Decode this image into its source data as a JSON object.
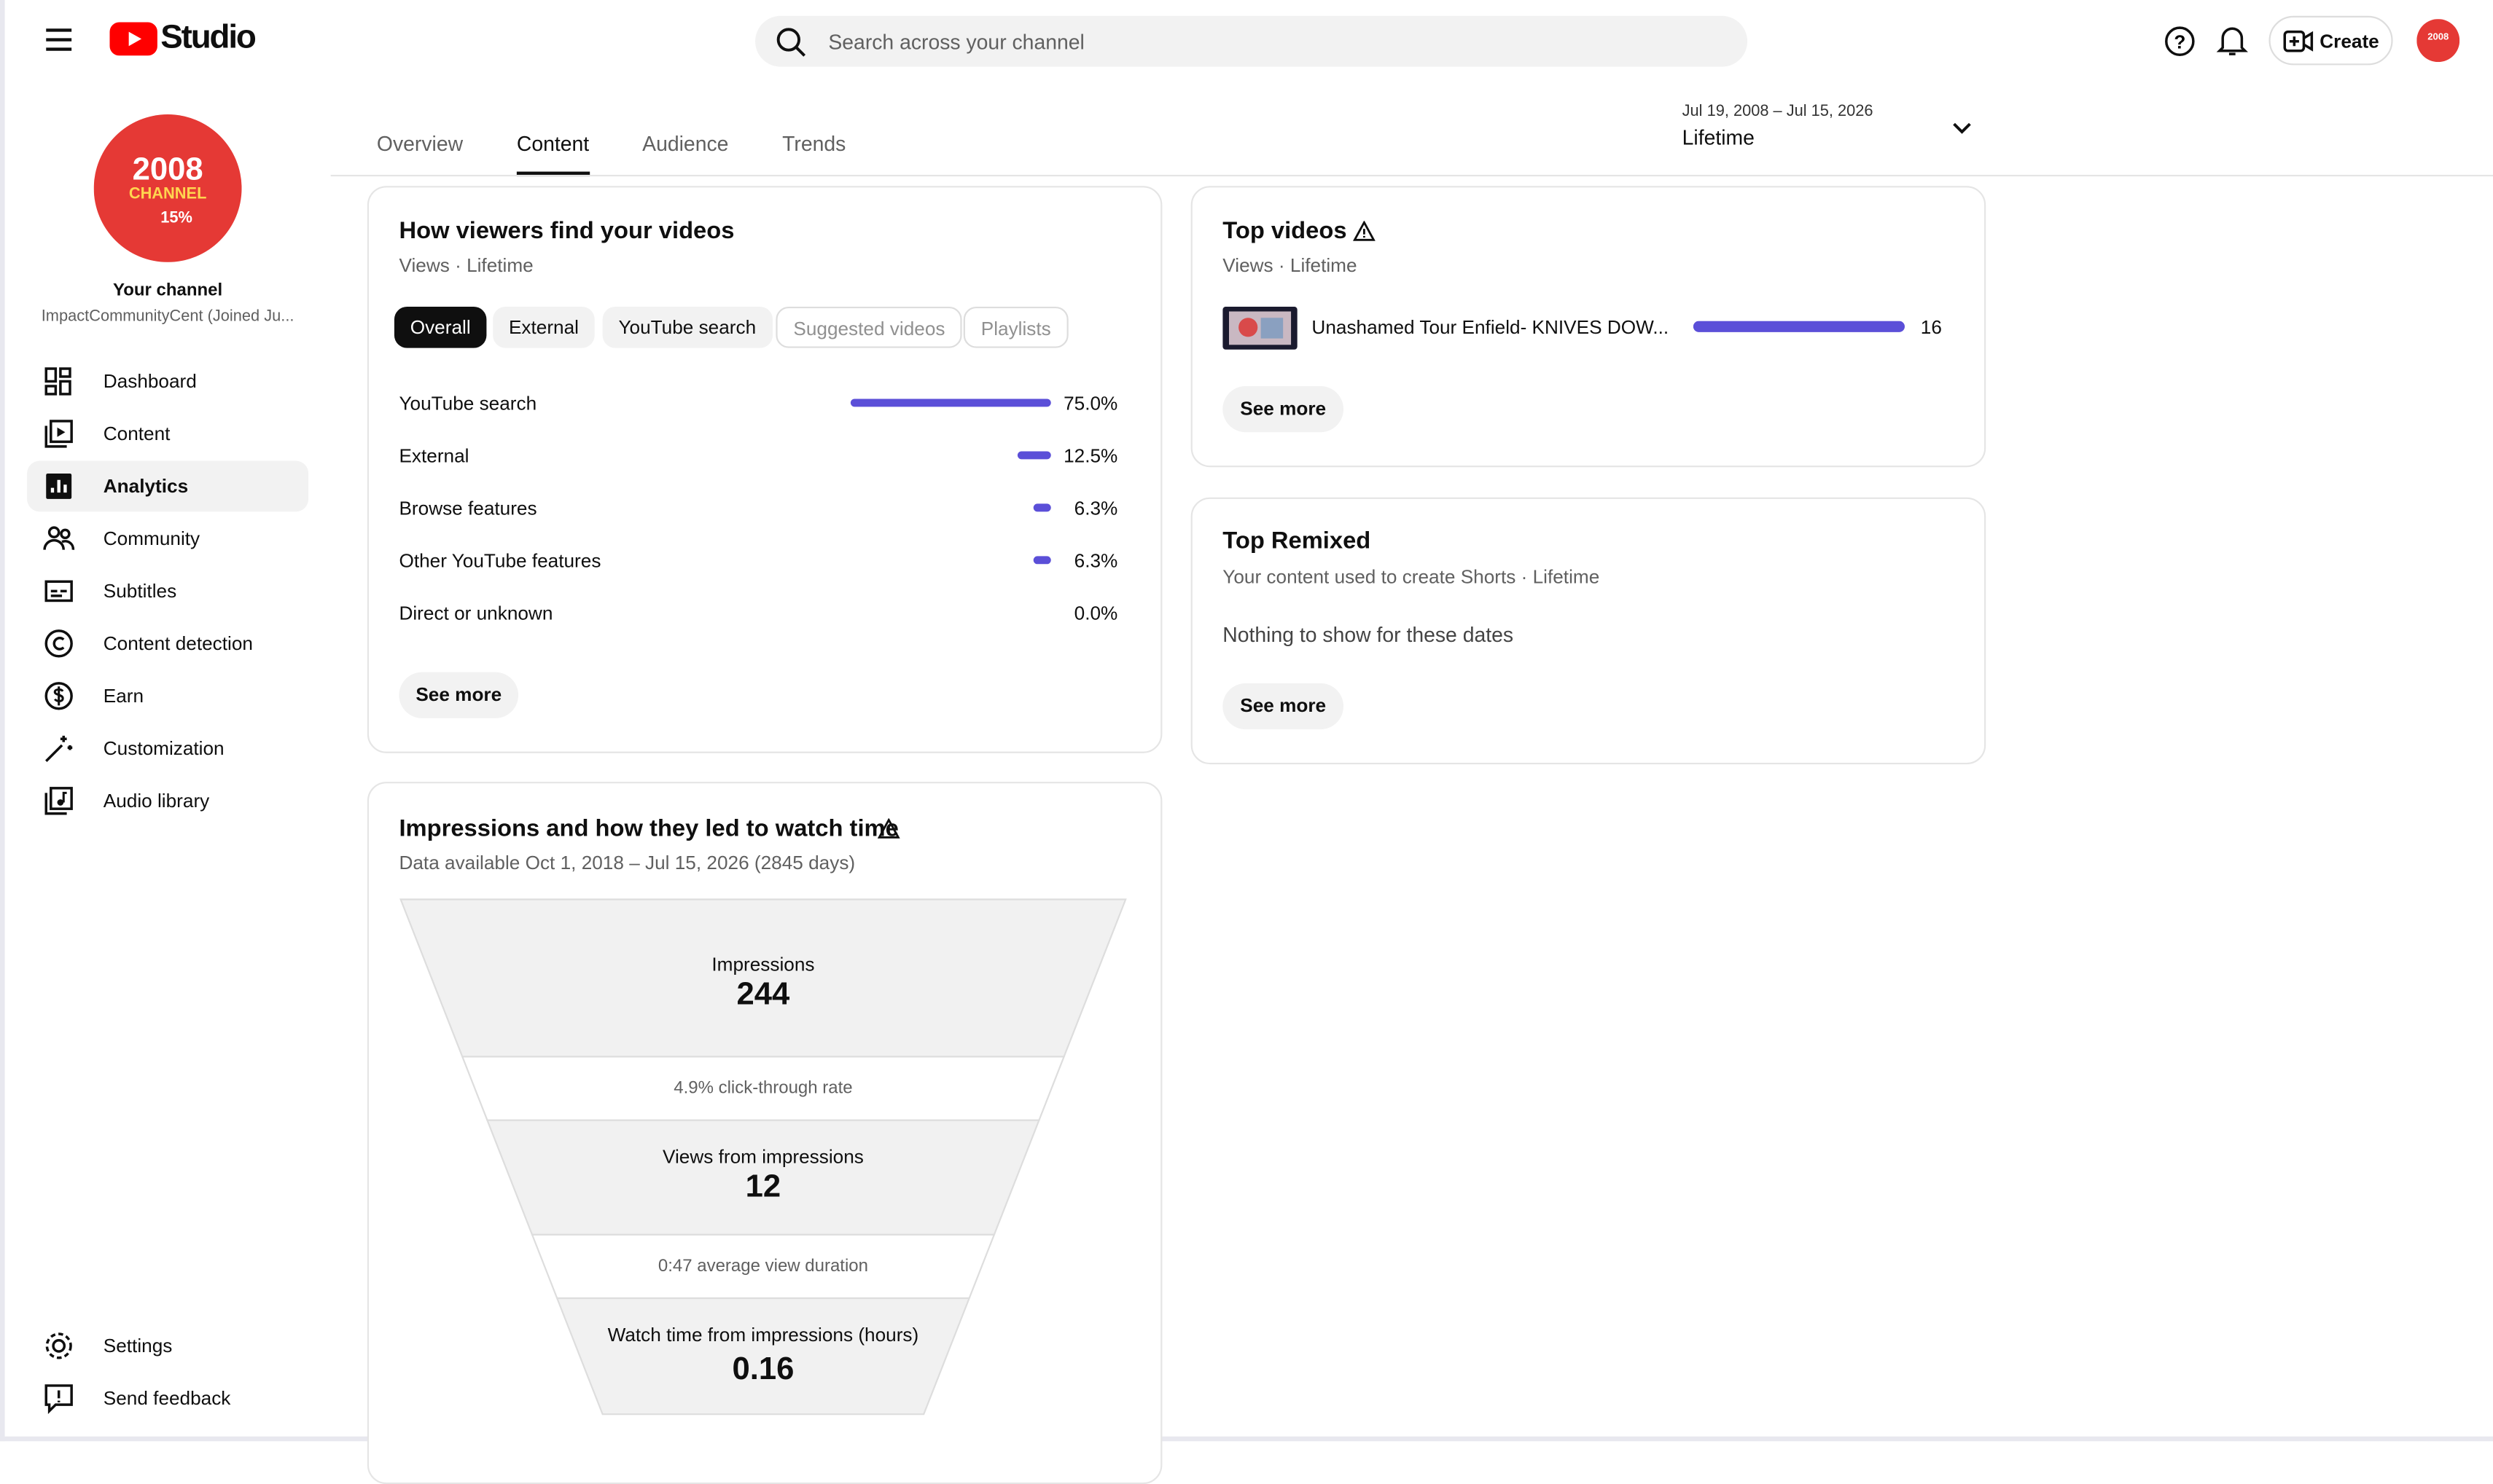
{
  "header": {
    "logo_text": "Studio",
    "search_placeholder": "Search across your channel",
    "create": "Create"
  },
  "sidebar": {
    "avatar_year": "2008",
    "avatar_word": "CHANNEL",
    "avatar_badge": "15%",
    "channel_label": "Your channel",
    "channel_name": "ImpactCommunityCent (Joined Ju...",
    "nav": [
      "Dashboard",
      "Content",
      "Analytics",
      "Community",
      "Subtitles",
      "Content detection",
      "Earn",
      "Customization",
      "Audio library"
    ],
    "footer": [
      "Settings",
      "Send feedback"
    ]
  },
  "tabs": [
    "Overview",
    "Content",
    "Audience",
    "Trends"
  ],
  "date_range": {
    "dates": "Jul 19, 2008 – Jul 15, 2026",
    "label": "Lifetime"
  },
  "traffic_card": {
    "title": "How viewers find your videos",
    "subtitle": "Views · Lifetime",
    "chips": [
      "Overall",
      "External",
      "YouTube search",
      "Suggested videos",
      "Playlists"
    ],
    "rows": [
      {
        "name": "YouTube search",
        "value": 75.0,
        "label": "75.0%"
      },
      {
        "name": "External",
        "value": 12.5,
        "label": "12.5%"
      },
      {
        "name": "Browse features",
        "value": 6.3,
        "label": "6.3%"
      },
      {
        "name": "Other YouTube features",
        "value": 6.3,
        "label": "6.3%"
      },
      {
        "name": "Direct or unknown",
        "value": 0.0,
        "label": "0.0%"
      }
    ],
    "see_more": "See more"
  },
  "top_videos": {
    "title": "Top videos",
    "subtitle": "Views · Lifetime",
    "videos": [
      {
        "title": "Unashamed Tour Enfield- KNIVES DOW...",
        "views": 16
      }
    ],
    "see_more": "See more"
  },
  "top_remixed": {
    "title": "Top Remixed",
    "subtitle": "Your content used to create Shorts · Lifetime",
    "empty": "Nothing to show for these dates",
    "see_more": "See more"
  },
  "impressions": {
    "title": "Impressions and how they led to watch time",
    "subtitle": "Data available Oct 1, 2018 – Jul 15, 2026 (2845 days)",
    "impressions_label": "Impressions",
    "impressions": 244,
    "ctr": "4.9% click-through rate",
    "views_label": "Views from impressions",
    "views": 12,
    "avg_duration": "0:47 average view duration",
    "watch_label": "Watch time from impressions (hours)",
    "watch_time": 0.16
  }
}
